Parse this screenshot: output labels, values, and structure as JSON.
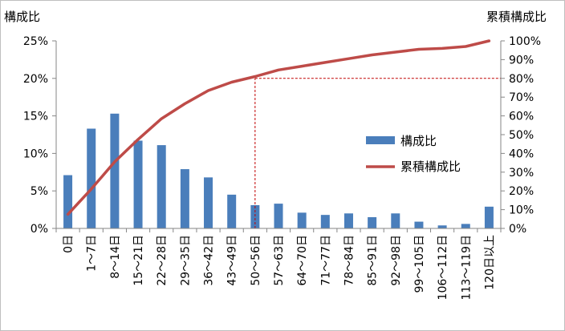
{
  "chart_data": {
    "type": "bar+line",
    "categories": [
      "0日",
      "1～7日",
      "8～14日",
      "15～21日",
      "22～28日",
      "29～35日",
      "36～42日",
      "43～49日",
      "50～56日",
      "57～63日",
      "64～70日",
      "71～77日",
      "78～84日",
      "85～91日",
      "92～98日",
      "99～105日",
      "106～112日",
      "113～119日",
      "120日以上"
    ],
    "y_left": {
      "title": "構成比",
      "ticks": [
        "0%",
        "5%",
        "10%",
        "15%",
        "20%",
        "25%"
      ],
      "ylim": [
        0,
        25
      ]
    },
    "y_right": {
      "title": "累積構成比",
      "ticks": [
        "0%",
        "10%",
        "20%",
        "30%",
        "40%",
        "50%",
        "60%",
        "70%",
        "80%",
        "90%",
        "100%"
      ],
      "ylim": [
        0,
        100
      ]
    },
    "series": [
      {
        "name": "構成比",
        "type": "bar",
        "axis": "left",
        "color": "#4a7ebb",
        "values": [
          7.1,
          13.3,
          15.3,
          11.7,
          11.1,
          7.9,
          6.8,
          4.5,
          3.1,
          3.3,
          2.1,
          1.8,
          2.0,
          1.5,
          2.0,
          0.9,
          0.4,
          0.6,
          2.9
        ]
      },
      {
        "name": "累積構成比",
        "type": "line",
        "axis": "right",
        "color": "#be4b48",
        "values": [
          7.5,
          21,
          35.5,
          47.5,
          58.5,
          66.5,
          73.5,
          78,
          81,
          84.5,
          86.5,
          88.5,
          90.5,
          92.5,
          94,
          95.5,
          96,
          97,
          100
        ]
      }
    ],
    "reference": {
      "category": "50～56日",
      "value": 80,
      "axis": "right",
      "style": "dashed",
      "color": "#c00000"
    },
    "legend": {
      "placement": "right-center"
    },
    "grid": false
  }
}
